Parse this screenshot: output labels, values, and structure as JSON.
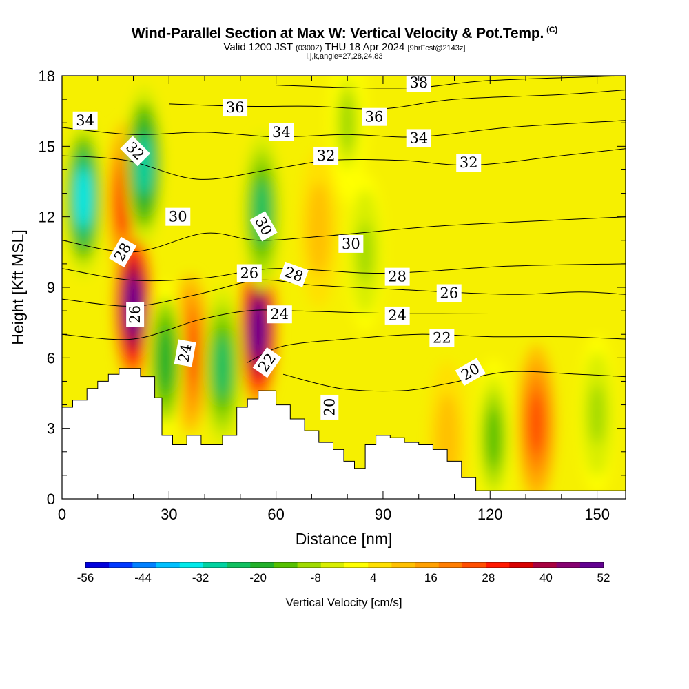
{
  "chart_data": {
    "type": "heatmap",
    "title": "Wind-Parallel Section at Max W: Vertical Velocity & Pot.Temp.",
    "title_superscript": "(C)",
    "subtitle_main": "Valid 1200 JST",
    "subtitle_zulu": "(0300Z)",
    "subtitle_date": "THU 18 Apr 2024",
    "subtitle_fcst": "[9hrFcst@2143z]",
    "subtitle2": "i,j,k,angle=27,28,24,83",
    "xlabel": "Distance [nm]",
    "ylabel": "Height [Kft MSL]",
    "xlim": [
      0,
      158
    ],
    "ylim": [
      0,
      18
    ],
    "xticks": [
      0,
      30,
      60,
      90,
      120,
      150
    ],
    "yticks": [
      0,
      3,
      6,
      9,
      12,
      15,
      18
    ],
    "colorbar": {
      "label": "Vertical Velocity [cm/s]",
      "min": -56,
      "max": 52,
      "tick_labels": [
        "-56",
        "-44",
        "-32",
        "-20",
        "-8",
        "4",
        "16",
        "28",
        "40",
        "52"
      ],
      "colors": [
        "#0000dc",
        "#0038ff",
        "#0080ff",
        "#00c0ff",
        "#00eaea",
        "#00d2a0",
        "#10c060",
        "#22b02a",
        "#55c000",
        "#a0da00",
        "#d8ee00",
        "#ffff00",
        "#ffe000",
        "#ffc000",
        "#ffa000",
        "#ff7d00",
        "#ff4e00",
        "#ff1800",
        "#d80000",
        "#a80040",
        "#860070",
        "#620090"
      ]
    },
    "vertical_velocity_background": "#f6f000",
    "vertical_velocity_features": [
      {
        "x": 18,
        "y": 12.7,
        "value": 30
      },
      {
        "x": 20,
        "y": 8.2,
        "value": 52
      },
      {
        "x": 55,
        "y": 7.2,
        "value": 52
      },
      {
        "x": 36,
        "y": 6.2,
        "value": 25
      },
      {
        "x": 72,
        "y": 11.5,
        "value": 10
      },
      {
        "x": 133,
        "y": 3.2,
        "value": 25
      },
      {
        "x": 108,
        "y": 2.5,
        "value": 10
      },
      {
        "x": 6,
        "y": 12.8,
        "value": -34
      },
      {
        "x": 23,
        "y": 14.2,
        "value": -30
      },
      {
        "x": 45,
        "y": 5.6,
        "value": -22
      },
      {
        "x": 29,
        "y": 5.9,
        "value": -18
      },
      {
        "x": 56,
        "y": 12.2,
        "value": -22
      },
      {
        "x": 121,
        "y": 2.6,
        "value": -14
      },
      {
        "x": 85,
        "y": 10.5,
        "value": -9
      },
      {
        "x": 150,
        "y": 3.6,
        "value": -10
      },
      {
        "x": 80,
        "y": 16,
        "value": -8
      }
    ],
    "terrain_height_kft": [
      [
        0,
        3.9
      ],
      [
        3,
        4.2
      ],
      [
        7,
        4.7
      ],
      [
        10,
        5
      ],
      [
        13,
        5.3
      ],
      [
        16,
        5.55
      ],
      [
        19,
        5.55
      ],
      [
        22,
        5.2
      ],
      [
        26,
        4.3
      ],
      [
        28,
        2.7
      ],
      [
        31,
        2.3
      ],
      [
        35,
        2.7
      ],
      [
        39,
        2.3
      ],
      [
        45,
        2.7
      ],
      [
        49,
        3.9
      ],
      [
        52,
        4.25
      ],
      [
        55,
        4.6
      ],
      [
        58,
        4.6
      ],
      [
        60,
        4
      ],
      [
        64,
        3.4
      ],
      [
        68,
        2.9
      ],
      [
        72,
        2.4
      ],
      [
        76,
        2.1
      ],
      [
        79,
        1.6
      ],
      [
        82,
        1.3
      ],
      [
        85,
        2.3
      ],
      [
        88,
        2.7
      ],
      [
        92,
        2.6
      ],
      [
        96,
        2.4
      ],
      [
        100,
        2.3
      ],
      [
        104,
        2.1
      ],
      [
        108,
        1.6
      ],
      [
        112,
        0.9
      ],
      [
        116,
        0.35
      ],
      [
        120,
        0.35
      ],
      [
        158,
        0.35
      ]
    ],
    "potential_temperature_contours_C": [
      {
        "value": 20,
        "points": [
          [
            62,
            5.3
          ],
          [
            78,
            4.7
          ],
          [
            95,
            4.6
          ],
          [
            108,
            4.9
          ],
          [
            125,
            5.4
          ],
          [
            145,
            5.3
          ],
          [
            158,
            5.2
          ]
        ]
      },
      {
        "value": 22,
        "points": [
          [
            52,
            5.8
          ],
          [
            62,
            6.5
          ],
          [
            80,
            6.8
          ],
          [
            100,
            7.0
          ],
          [
            120,
            6.9
          ],
          [
            140,
            6.9
          ],
          [
            158,
            6.8
          ]
        ]
      },
      {
        "value": 24,
        "points": [
          [
            0,
            7.0
          ],
          [
            20,
            6.8
          ],
          [
            38,
            7.6
          ],
          [
            52,
            8.0
          ],
          [
            65,
            8.0
          ],
          [
            90,
            7.9
          ],
          [
            120,
            7.9
          ],
          [
            140,
            7.9
          ],
          [
            158,
            7.9
          ]
        ]
      },
      {
        "value": 26,
        "points": [
          [
            0,
            8.5
          ],
          [
            20,
            8.2
          ],
          [
            38,
            8.7
          ],
          [
            55,
            9.3
          ],
          [
            70,
            9.1
          ],
          [
            95,
            8.9
          ],
          [
            125,
            8.7
          ],
          [
            145,
            8.8
          ],
          [
            158,
            8.7
          ]
        ]
      },
      {
        "value": 28,
        "points": [
          [
            0,
            9.8
          ],
          [
            20,
            9.3
          ],
          [
            40,
            9.4
          ],
          [
            60,
            9.8
          ],
          [
            90,
            9.6
          ],
          [
            125,
            9.9
          ],
          [
            158,
            10.0
          ]
        ]
      },
      {
        "value": 30,
        "points": [
          [
            0,
            11.0
          ],
          [
            20,
            10.5
          ],
          [
            40,
            11.3
          ],
          [
            55,
            11.0
          ],
          [
            75,
            11.2
          ],
          [
            105,
            11.6
          ],
          [
            130,
            11.8
          ],
          [
            158,
            12.0
          ]
        ]
      },
      {
        "value": 32,
        "points": [
          [
            0,
            14.6
          ],
          [
            18,
            14.4
          ],
          [
            38,
            13.6
          ],
          [
            58,
            14.0
          ],
          [
            75,
            14.4
          ],
          [
            95,
            14.4
          ],
          [
            115,
            14.2
          ],
          [
            140,
            14.6
          ],
          [
            158,
            14.9
          ]
        ]
      },
      {
        "value": 34,
        "points": [
          [
            0,
            15.8
          ],
          [
            20,
            15.5
          ],
          [
            40,
            15.6
          ],
          [
            60,
            15.4
          ],
          [
            80,
            15.5
          ],
          [
            100,
            15.4
          ],
          [
            125,
            15.8
          ],
          [
            158,
            16.1
          ]
        ]
      },
      {
        "value": 36,
        "points": [
          [
            30,
            16.8
          ],
          [
            50,
            16.7
          ],
          [
            70,
            16.7
          ],
          [
            90,
            16.6
          ],
          [
            110,
            17.0
          ],
          [
            140,
            17.2
          ],
          [
            158,
            17.4
          ]
        ]
      },
      {
        "value": 38,
        "points": [
          [
            60,
            17.6
          ],
          [
            80,
            17.5
          ],
          [
            100,
            17.5
          ],
          [
            120,
            17.8
          ],
          [
            158,
            18.0
          ]
        ]
      }
    ],
    "contour_labels": [
      {
        "text": "34",
        "x": 6.5,
        "y": 16.1,
        "angle": 0
      },
      {
        "text": "32",
        "x": 20.5,
        "y": 14.8,
        "angle": 45
      },
      {
        "text": "36",
        "x": 48.5,
        "y": 16.65,
        "angle": 0
      },
      {
        "text": "34",
        "x": 61.5,
        "y": 15.6,
        "angle": 0
      },
      {
        "text": "32",
        "x": 74,
        "y": 14.6,
        "angle": 0
      },
      {
        "text": "38",
        "x": 100,
        "y": 17.7,
        "angle": 0
      },
      {
        "text": "36",
        "x": 87.5,
        "y": 16.25,
        "angle": 0
      },
      {
        "text": "34",
        "x": 100,
        "y": 15.35,
        "angle": 0
      },
      {
        "text": "32",
        "x": 114,
        "y": 14.3,
        "angle": 0
      },
      {
        "text": "30",
        "x": 32.5,
        "y": 12.0,
        "angle": 0
      },
      {
        "text": "30",
        "x": 56.5,
        "y": 11.6,
        "angle": 60
      },
      {
        "text": "30",
        "x": 81,
        "y": 10.85,
        "angle": 0
      },
      {
        "text": "28",
        "x": 17,
        "y": 10.5,
        "angle": -60
      },
      {
        "text": "26",
        "x": 52.5,
        "y": 9.6,
        "angle": 0
      },
      {
        "text": "28",
        "x": 65,
        "y": 9.55,
        "angle": 20
      },
      {
        "text": "28",
        "x": 94,
        "y": 9.45,
        "angle": 0
      },
      {
        "text": "26",
        "x": 108.5,
        "y": 8.75,
        "angle": 0
      },
      {
        "text": "26",
        "x": 20.5,
        "y": 7.85,
        "angle": -90
      },
      {
        "text": "24",
        "x": 61,
        "y": 7.85,
        "angle": 0
      },
      {
        "text": "24",
        "x": 94,
        "y": 7.8,
        "angle": 0
      },
      {
        "text": "22",
        "x": 106.5,
        "y": 6.85,
        "angle": 0
      },
      {
        "text": "24",
        "x": 34.5,
        "y": 6.2,
        "angle": -80
      },
      {
        "text": "22",
        "x": 57.5,
        "y": 5.8,
        "angle": -55
      },
      {
        "text": "20",
        "x": 114.5,
        "y": 5.4,
        "angle": -30
      },
      {
        "text": "20",
        "x": 75,
        "y": 3.9,
        "angle": -90
      }
    ]
  }
}
